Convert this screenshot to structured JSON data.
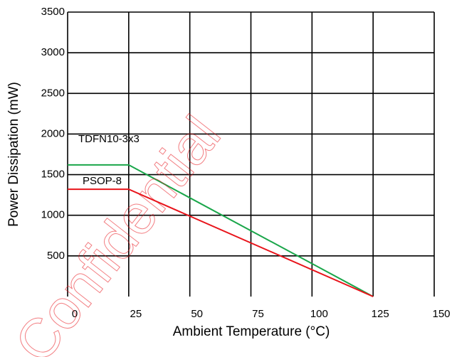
{
  "chart_data": {
    "type": "line",
    "xlabel": "Ambient Temperature (°C)",
    "ylabel": "Power Dissipation (mW)",
    "x": [
      0,
      25,
      125
    ],
    "series": [
      {
        "name": "TDFN10-3x3",
        "color": "#1aa64a",
        "values": [
          1620,
          1620,
          0
        ]
      },
      {
        "name": "PSOP-8",
        "color": "#e8141b",
        "values": [
          1320,
          1320,
          0
        ]
      }
    ],
    "xlim": [
      0,
      150
    ],
    "xticks": [
      0,
      25,
      50,
      75,
      100,
      125,
      150
    ],
    "ylim": [
      0,
      3500
    ],
    "yticks": [
      500,
      1000,
      1500,
      2000,
      2500,
      3000,
      3500
    ],
    "grid": true,
    "watermark": "Confidential"
  }
}
